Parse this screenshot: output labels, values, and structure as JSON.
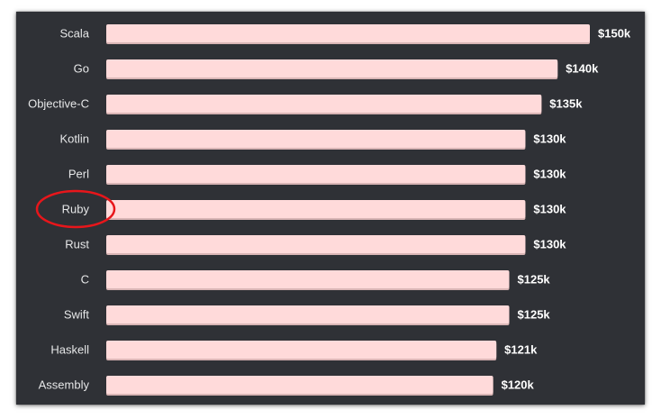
{
  "chart_data": {
    "type": "bar",
    "orientation": "horizontal",
    "title": "",
    "xlabel": "",
    "ylabel": "",
    "categories": [
      "Scala",
      "Go",
      "Objective-C",
      "Kotlin",
      "Perl",
      "Ruby",
      "Rust",
      "C",
      "Swift",
      "Haskell",
      "Assembly"
    ],
    "values": [
      150,
      140,
      135,
      130,
      130,
      130,
      130,
      125,
      125,
      121,
      120
    ],
    "value_labels": [
      "$150k",
      "$140k",
      "$135k",
      "$130k",
      "$130k",
      "$130k",
      "$130k",
      "$125k",
      "$125k",
      "$121k",
      "$120k"
    ],
    "unit": "thousand USD",
    "grid": false,
    "legend": "none",
    "highlighted_category": "Ruby",
    "colors": {
      "background": "#2f3136",
      "bar": "#ffdada",
      "bar_shadow": "#d9b5b5",
      "category_text": "#e6e7e8",
      "value_text": "#ffffff",
      "highlight_circle": "#e8161b"
    }
  }
}
